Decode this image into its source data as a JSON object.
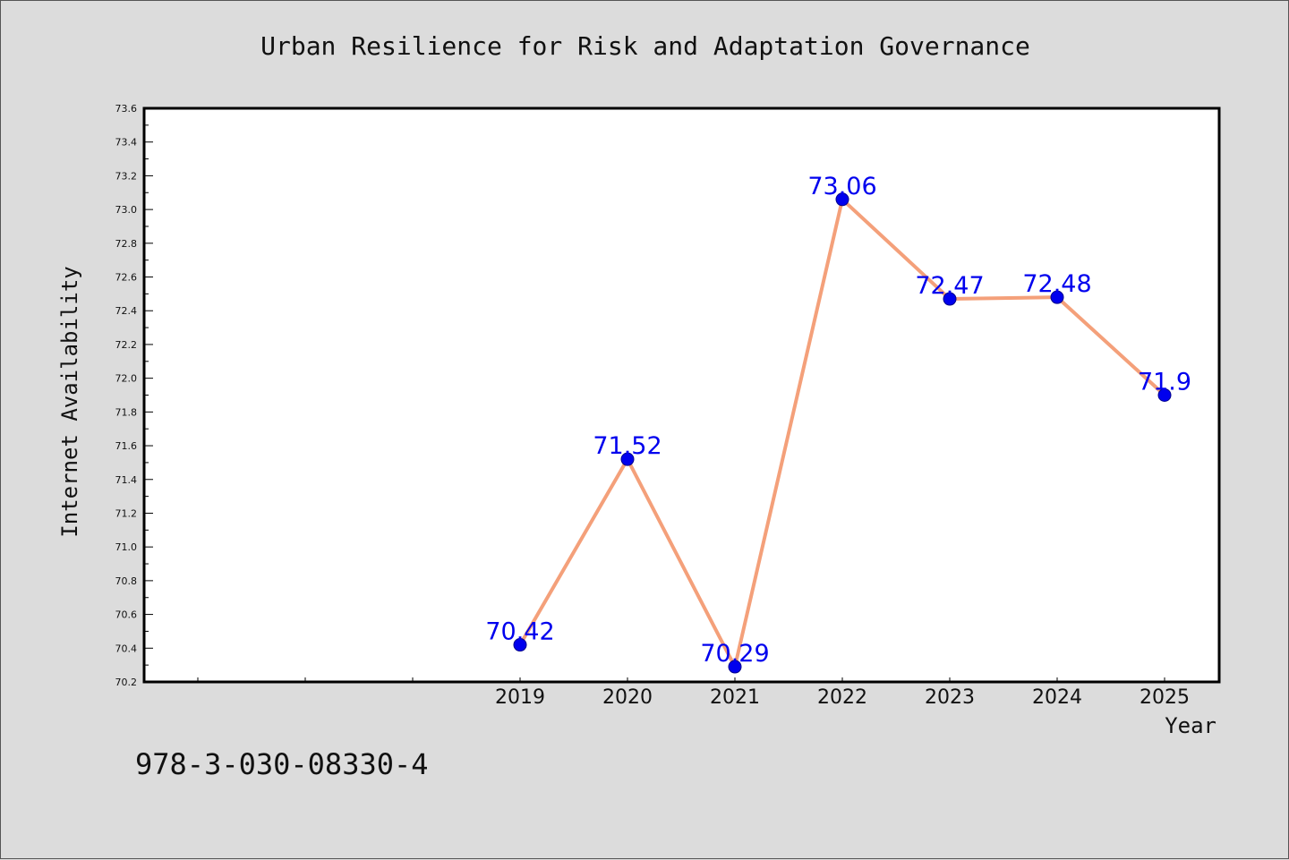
{
  "chart_data": {
    "type": "line",
    "title": "Urban Resilience for Risk and Adaptation Governance",
    "xlabel": "Year",
    "ylabel": "Internet Availability",
    "categories": [
      "2019",
      "2020",
      "2021",
      "2022",
      "2023",
      "2024",
      "2025"
    ],
    "series": [
      {
        "values": [
          70.42,
          71.52,
          70.29,
          73.06,
          72.47,
          72.48,
          71.9
        ],
        "labels": [
          "70.42",
          "71.52",
          "70.29",
          "73.06",
          "72.47",
          "72.48",
          "71.9"
        ],
        "line_color": "#f4a07a",
        "marker_color": "#0000ee"
      }
    ],
    "ylim": [
      70.2,
      73.6
    ],
    "yticks": [
      "70.2",
      "70.4",
      "70.6",
      "70.8",
      "71.0",
      "71.2",
      "71.4",
      "71.6",
      "71.8",
      "72.0",
      "72.2",
      "72.4",
      "72.6",
      "72.8",
      "73.0",
      "73.2",
      "73.4",
      "73.6"
    ],
    "grid": false,
    "background": "#dcdcdc",
    "plot_background": "#ffffff"
  },
  "footer_text": "978-3-030-08330-4"
}
